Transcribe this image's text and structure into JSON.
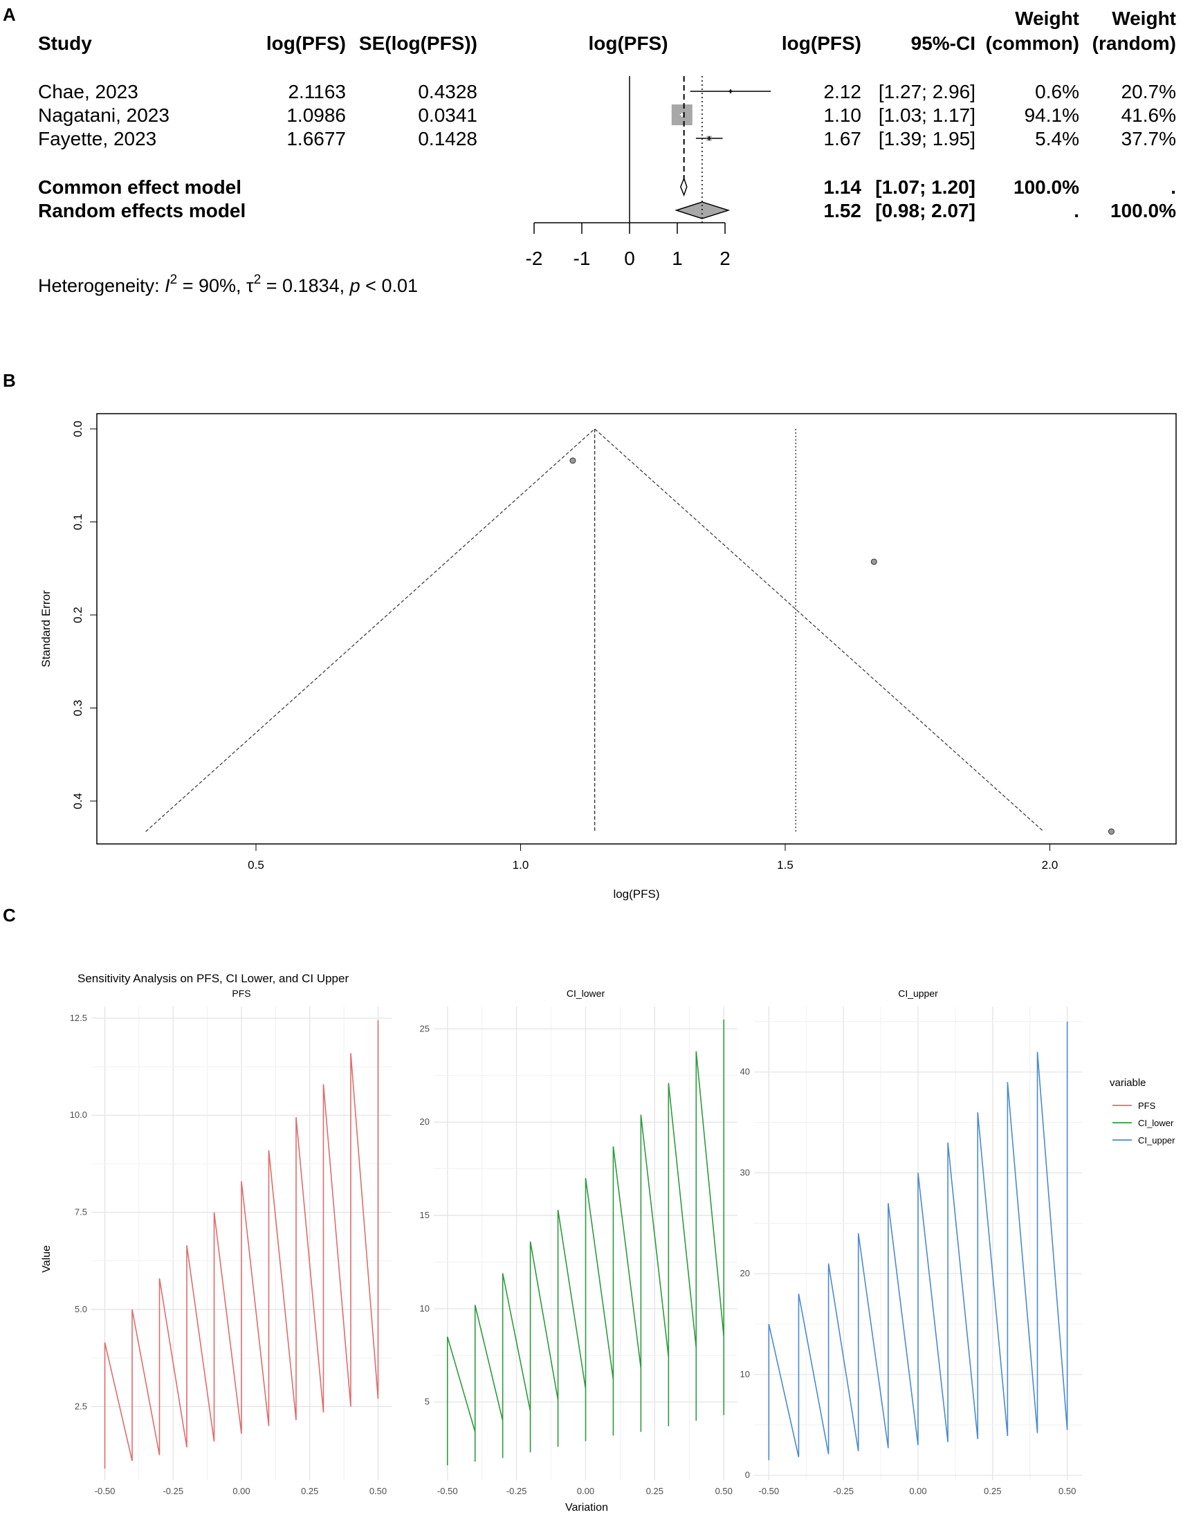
{
  "panels": {
    "a": "A",
    "b": "B",
    "c": "C"
  },
  "chart_data": [
    {
      "type": "forest",
      "headers": {
        "study": "Study",
        "estimate": "log(PFS)",
        "se": "SE(log(PFS))",
        "plot": "log(PFS)",
        "effect": "log(PFS)",
        "ci": "95%-CI",
        "weight_common_top": "Weight",
        "weight_common_bottom": "(common)",
        "weight_random_top": "Weight",
        "weight_random_bottom": "(random)"
      },
      "studies": [
        {
          "name": "Chae, 2023",
          "estimate": "2.1163",
          "se": "0.4328",
          "value": 2.1163,
          "lower": 1.27,
          "upper": 2.96,
          "effect": "2.12",
          "ci": "[1.27; 2.96]",
          "w_common": "0.6%",
          "w_random": "20.7%",
          "w_common_num": 0.6
        },
        {
          "name": "Nagatani, 2023",
          "estimate": "1.0986",
          "se": "0.0341",
          "value": 1.0986,
          "lower": 1.03,
          "upper": 1.17,
          "effect": "1.10",
          "ci": "[1.03; 1.17]",
          "w_common": "94.1%",
          "w_random": "41.6%",
          "w_common_num": 94.1
        },
        {
          "name": "Fayette, 2023",
          "estimate": "1.6677",
          "se": "0.1428",
          "value": 1.6677,
          "lower": 1.39,
          "upper": 1.95,
          "effect": "1.67",
          "ci": "[1.39; 1.95]",
          "w_common": "5.4%",
          "w_random": "37.7%",
          "w_common_num": 5.4
        }
      ],
      "models": [
        {
          "name": "Common effect model",
          "value": 1.14,
          "lower": 1.07,
          "upper": 1.2,
          "effect": "1.14",
          "ci": "[1.07; 1.20]",
          "w_common": "100.0%",
          "w_random": "."
        },
        {
          "name": "Random effects model",
          "value": 1.52,
          "lower": 0.98,
          "upper": 2.07,
          "effect": "1.52",
          "ci": "[0.98; 2.07]",
          "w_common": ".",
          "w_random": "100.0%"
        }
      ],
      "xlim": [
        -2,
        2
      ],
      "xticks": [
        -2,
        -1,
        0,
        1,
        2
      ],
      "heterogeneity": {
        "prefix": "Heterogeneity: ",
        "i2_symbol": "I",
        "sup": "2",
        "i2_value": " = 90%, ",
        "tau_symbol": "τ",
        "tau_value": " = 0.1834, ",
        "p_symbol": "p",
        "p_value": " < 0.01"
      }
    },
    {
      "type": "scatter",
      "xlabel": "log(PFS)",
      "ylabel": "Standard Error",
      "xlim": [
        0.2,
        2.25
      ],
      "ylim": [
        0,
        0.45
      ],
      "xticks": [
        "0.5",
        "1.0",
        "1.5",
        "2.0"
      ],
      "yticks": [
        "0.0",
        "0.1",
        "0.2",
        "0.3",
        "0.4"
      ],
      "points": [
        {
          "x": 1.0986,
          "y": 0.0341
        },
        {
          "x": 1.6677,
          "y": 0.1428
        },
        {
          "x": 2.1163,
          "y": 0.4328
        }
      ],
      "common_effect": 1.14,
      "random_effect": 1.52,
      "funnel_max_se": 0.4328
    },
    {
      "type": "line",
      "title": "Sensitivity Analysis on PFS, CI Lower, and CI Upper",
      "xlabel": "Variation",
      "ylabel": "Value",
      "xticks": [
        "-0.50",
        "-0.25",
        "0.00",
        "0.25",
        "0.50"
      ],
      "x": [
        -0.5,
        -0.4,
        -0.3,
        -0.2,
        -0.1,
        0.0,
        0.1,
        0.2,
        0.3,
        0.4,
        0.5
      ],
      "legend_title": "variable",
      "legend_placement": "right",
      "facets": [
        {
          "name": "PFS",
          "color": "#e06c6c",
          "ylim": [
            0.6,
            12.8
          ],
          "yticks": [
            "2.5",
            "5.0",
            "7.5",
            "10.0",
            "12.5"
          ],
          "low": [
            0.9,
            1.1,
            1.25,
            1.45,
            1.6,
            1.8,
            2.0,
            2.15,
            2.35,
            2.5,
            2.7
          ],
          "high": [
            4.15,
            5.0,
            5.8,
            6.65,
            7.5,
            8.3,
            9.1,
            9.95,
            10.8,
            11.6,
            12.45
          ]
        },
        {
          "name": "CI_lower",
          "color": "#2e9a3e",
          "ylim": [
            0.8,
            26.2
          ],
          "yticks": [
            "5",
            "10",
            "15",
            "20",
            "25"
          ],
          "low": [
            1.6,
            1.8,
            2.0,
            2.3,
            2.6,
            2.9,
            3.2,
            3.4,
            3.7,
            4.0,
            4.3
          ],
          "high": [
            8.5,
            10.2,
            11.9,
            13.6,
            15.3,
            17.0,
            18.7,
            20.4,
            22.1,
            23.8,
            25.5
          ],
          "mid": [
            8.5,
            3.4,
            4.0,
            4.5,
            5.1,
            5.7,
            6.2,
            6.8,
            7.4,
            7.9,
            8.5
          ]
        },
        {
          "name": "CI_upper",
          "color": "#4a8ad0",
          "ylim": [
            -0.5,
            46.5
          ],
          "yticks": [
            "0",
            "10",
            "20",
            "30",
            "40"
          ],
          "low": [
            1.5,
            1.8,
            2.1,
            2.4,
            2.7,
            3.0,
            3.3,
            3.6,
            3.9,
            4.2,
            4.5
          ],
          "high": [
            15.0,
            18.0,
            21.0,
            24.0,
            27.0,
            30.0,
            33.0,
            36.0,
            39.0,
            42.0,
            45.0
          ]
        }
      ]
    }
  ]
}
